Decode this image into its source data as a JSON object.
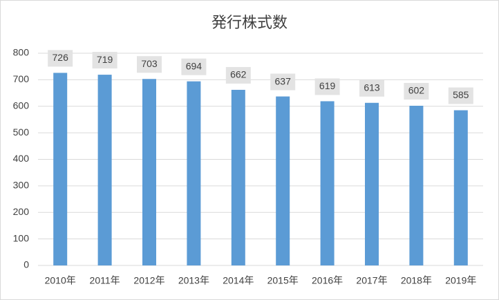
{
  "chart_data": {
    "type": "bar",
    "title": "発行株式数",
    "categories": [
      "2010年",
      "2011年",
      "2012年",
      "2013年",
      "2014年",
      "2015年",
      "2016年",
      "2017年",
      "2018年",
      "2019年"
    ],
    "values": [
      726,
      719,
      703,
      694,
      662,
      637,
      619,
      613,
      602,
      585
    ],
    "color": "#5b9bd5",
    "ylim": [
      0,
      800
    ],
    "yticks": [
      0,
      100,
      200,
      300,
      400,
      500,
      600,
      700,
      800
    ],
    "grid": true
  }
}
